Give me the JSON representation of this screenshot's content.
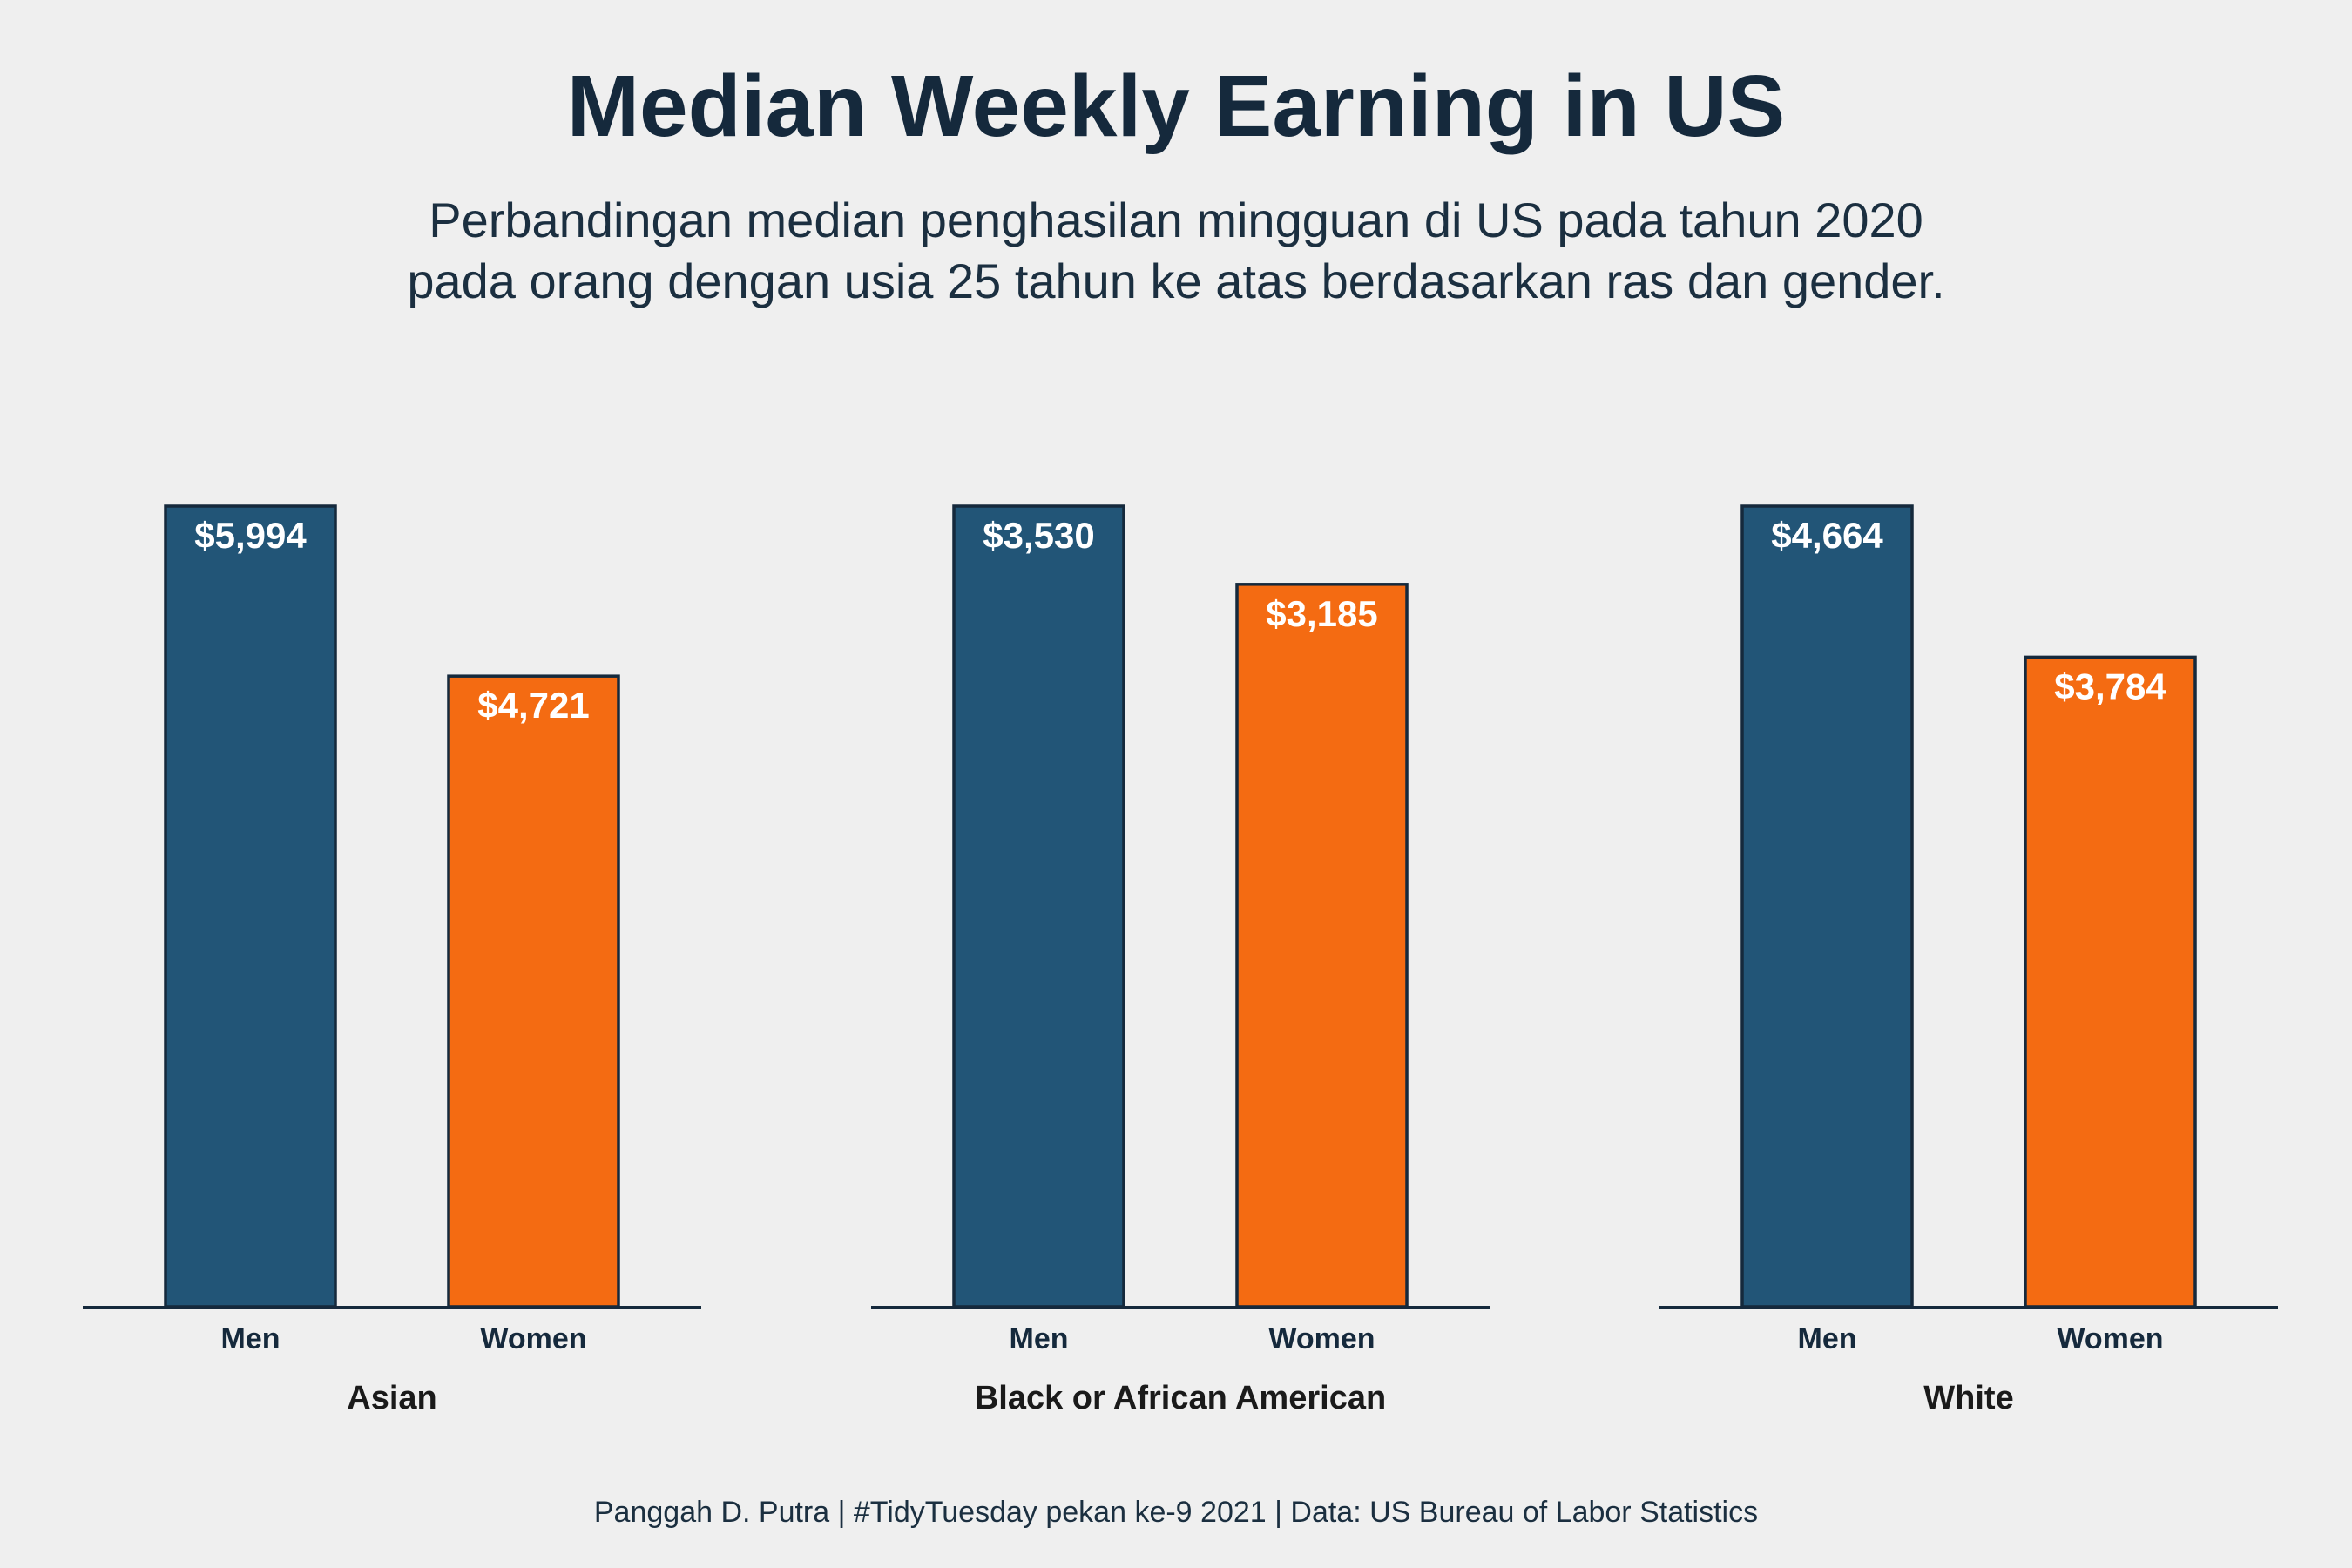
{
  "title": "Median Weekly Earning in US",
  "subtitle_lines": [
    "Perbandingan median penghasilan mingguan di US pada tahun 2020",
    "pada orang dengan usia 25 tahun ke atas berdasarkan ras dan gender."
  ],
  "caption": "Panggah D. Putra | #TidyTuesday pekan ke-9 2021 | Data: US Bureau of Labor Statistics",
  "colors": {
    "men": "#225577",
    "women": "#f46b12",
    "outline": "#15293c",
    "background": "#efefef",
    "label": "#ffffff"
  },
  "chart_data": {
    "type": "bar",
    "categories": [
      "Men",
      "Women"
    ],
    "panels": [
      {
        "name": "Asian",
        "values": [
          5994,
          4721
        ],
        "labels": [
          "$5,994",
          "$4,721"
        ]
      },
      {
        "name": "Black or African American",
        "values": [
          3530,
          3185
        ],
        "labels": [
          "$3,530",
          "$3,185"
        ]
      },
      {
        "name": "White",
        "values": [
          4664,
          3784
        ],
        "labels": [
          "$4,664",
          "$3,784"
        ]
      }
    ],
    "y_axis_shown": false,
    "grid": false,
    "legend": "none"
  }
}
